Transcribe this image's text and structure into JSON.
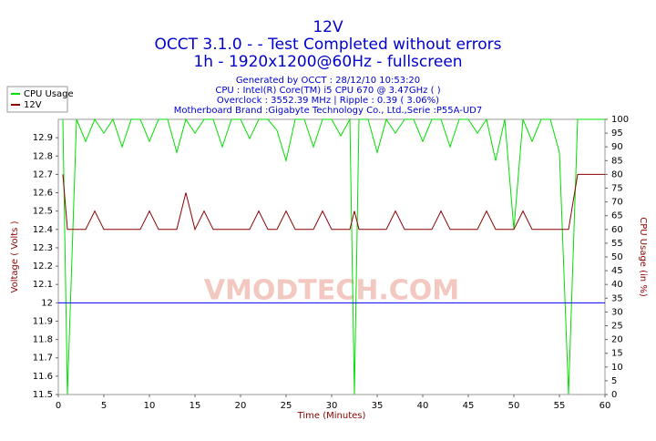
{
  "chart_data": {
    "type": "line",
    "title": "12V",
    "subtitle_lines": [
      "OCCT 3.1.0 -  - Test Completed without errors",
      "1h - 1920x1200@60Hz - fullscreen"
    ],
    "info_lines": [
      "Generated by OCCT : 28/12/10 10:53:20",
      "CPU : Intel(R) Core(TM) i5 CPU 670 @ 3.47GHz (  )",
      "Overclock : 3552.39 MHz | Ripple : 0.39 ( 3.06%)",
      "Motherboard Brand :Gigabyte Technology Co., Ltd.,Serie :P55A-UD7"
    ],
    "watermark": "VMODTECH.COM",
    "x_label": "Time (Minutes)",
    "y_label": "Voltage ( Volts )",
    "y2_label": "CPU Usage (in %)",
    "x": [
      0.5,
      1,
      2,
      3,
      4,
      5,
      6,
      7,
      8,
      9,
      10,
      11,
      12,
      13,
      14,
      15,
      16,
      17,
      18,
      19,
      20,
      21,
      22,
      23,
      24,
      25,
      26,
      27,
      28,
      29,
      30,
      31,
      32,
      32.5,
      33,
      34,
      35,
      36,
      37,
      38,
      39,
      40,
      41,
      42,
      43,
      44,
      45,
      46,
      47,
      48,
      49,
      50,
      51,
      52,
      53,
      54,
      55,
      56,
      57,
      58,
      59,
      60
    ],
    "series": [
      {
        "name": "CPU Usage",
        "color": "#00e000",
        "axis": "y2",
        "values": [
          100,
          0,
          100,
          92,
          100,
          95,
          100,
          90,
          100,
          100,
          92,
          100,
          100,
          88,
          100,
          95,
          100,
          100,
          90,
          100,
          100,
          93,
          100,
          100,
          96,
          85,
          100,
          100,
          90,
          100,
          100,
          94,
          100,
          0,
          100,
          100,
          88,
          100,
          95,
          100,
          100,
          92,
          100,
          100,
          90,
          100,
          100,
          95,
          100,
          85,
          100,
          60,
          100,
          92,
          100,
          100,
          88,
          0,
          100,
          100,
          100,
          100
        ]
      },
      {
        "name": "12V",
        "color": "#8b0000",
        "values": [
          12.7,
          12.4,
          12.4,
          12.4,
          12.5,
          12.4,
          12.4,
          12.4,
          12.4,
          12.4,
          12.5,
          12.4,
          12.4,
          12.4,
          12.6,
          12.4,
          12.5,
          12.4,
          12.4,
          12.4,
          12.4,
          12.4,
          12.5,
          12.4,
          12.4,
          12.5,
          12.4,
          12.4,
          12.4,
          12.5,
          12.4,
          12.4,
          12.4,
          12.5,
          12.4,
          12.4,
          12.4,
          12.4,
          12.5,
          12.4,
          12.4,
          12.4,
          12.4,
          12.5,
          12.4,
          12.4,
          12.4,
          12.4,
          12.5,
          12.4,
          12.4,
          12.4,
          12.5,
          12.4,
          12.4,
          12.4,
          12.4,
          12.4,
          12.7,
          12.7,
          12.7,
          12.7
        ]
      }
    ],
    "reference_line": {
      "value": 12,
      "color": "#0000ff"
    },
    "xlim": [
      0,
      60
    ],
    "xticks": [
      0,
      5,
      10,
      15,
      20,
      25,
      30,
      35,
      40,
      45,
      50,
      55,
      60
    ],
    "ylim": [
      11.5,
      13.0
    ],
    "yticks": [
      11.5,
      11.6,
      11.7,
      11.8,
      11.9,
      12,
      12.1,
      12.2,
      12.3,
      12.4,
      12.5,
      12.6,
      12.7,
      12.8,
      12.9
    ],
    "y2lim": [
      0,
      100
    ],
    "y2ticks": [
      0,
      5,
      10,
      15,
      20,
      25,
      30,
      35,
      40,
      45,
      50,
      55,
      60,
      65,
      70,
      75,
      80,
      85,
      90,
      95,
      100
    ],
    "legend": "top-left"
  }
}
